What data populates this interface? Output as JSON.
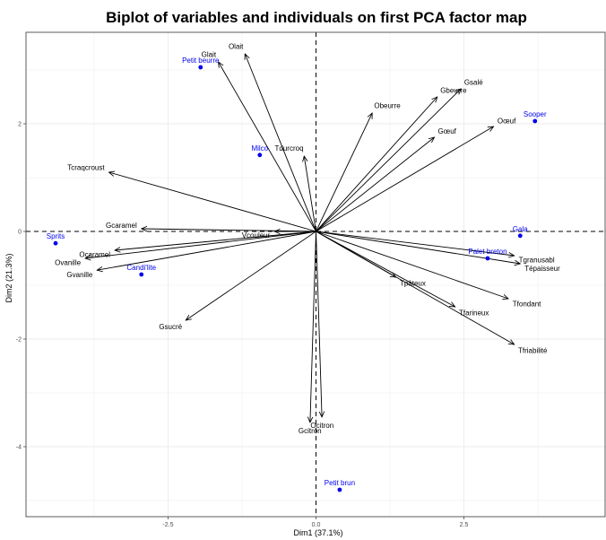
{
  "chart_data": {
    "type": "scatter",
    "title": "Biplot of variables and individuals on first PCA factor map",
    "xlabel": "Dim1 (37.1%)",
    "ylabel": "Dim2 (21.3%)",
    "xlim": [
      -4.9,
      4.9
    ],
    "ylim": [
      -5.3,
      3.7
    ],
    "x_ticks": [
      -2.5,
      0.0,
      2.5
    ],
    "x_tick_labels": [
      "-2.5",
      "0.0",
      "2.5"
    ],
    "y_ticks": [
      -4,
      -2,
      0,
      2
    ],
    "y_tick_labels": [
      "-4",
      "-2",
      "0",
      "2"
    ],
    "grid": true,
    "colors": {
      "individuals": "#0000ee",
      "variables": "#000000",
      "grid": "#ebebeb",
      "frame": "#333333"
    },
    "variables": [
      {
        "name": "Glait",
        "x": -1.65,
        "y": 3.15
      },
      {
        "name": "Olait",
        "x": -1.2,
        "y": 3.3
      },
      {
        "name": "Gbeurre",
        "x": 2.05,
        "y": 2.5
      },
      {
        "name": "Gsalé",
        "x": 2.45,
        "y": 2.65
      },
      {
        "name": "Obeurre",
        "x": 0.95,
        "y": 2.2
      },
      {
        "name": "Gœuf",
        "x": 2.0,
        "y": 1.75
      },
      {
        "name": "Oœuf",
        "x": 3.0,
        "y": 1.95
      },
      {
        "name": "Tdurcroq",
        "x": -0.2,
        "y": 1.4
      },
      {
        "name": "Tcraqcroust",
        "x": -3.5,
        "y": 1.1
      },
      {
        "name": "Gcaramel",
        "x": -2.95,
        "y": 0.05
      },
      {
        "name": "Vcouleur",
        "x": -0.7,
        "y": 0.0
      },
      {
        "name": "Ocaramel",
        "x": -3.4,
        "y": -0.35
      },
      {
        "name": "Ovanille",
        "x": -3.9,
        "y": -0.5
      },
      {
        "name": "Gvanille",
        "x": -3.7,
        "y": -0.72
      },
      {
        "name": "Gsucré",
        "x": -2.2,
        "y": -1.65
      },
      {
        "name": "Tgranusabl",
        "x": 3.35,
        "y": -0.45
      },
      {
        "name": "Tépaisseur",
        "x": 3.45,
        "y": -0.6
      },
      {
        "name": "Tpâteux",
        "x": 1.35,
        "y": -0.85
      },
      {
        "name": "Tfarineux",
        "x": 2.35,
        "y": -1.4
      },
      {
        "name": "Tfondant",
        "x": 3.25,
        "y": -1.25
      },
      {
        "name": "Tfriabilité",
        "x": 3.35,
        "y": -2.1
      },
      {
        "name": "Gcitron",
        "x": -0.1,
        "y": -3.55
      },
      {
        "name": "Ocitron",
        "x": 0.1,
        "y": -3.45
      }
    ],
    "individuals": [
      {
        "name": "Petit beurre",
        "x": -1.95,
        "y": 3.05
      },
      {
        "name": "Milco",
        "x": -0.95,
        "y": 1.42
      },
      {
        "name": "Sooper",
        "x": 3.7,
        "y": 2.05
      },
      {
        "name": "Gala",
        "x": 3.45,
        "y": -0.08
      },
      {
        "name": "Palet breton",
        "x": 2.9,
        "y": -0.5
      },
      {
        "name": "Sprits",
        "x": -4.4,
        "y": -0.22
      },
      {
        "name": "Candi'lite",
        "x": -2.95,
        "y": -0.8
      },
      {
        "name": "Petit brun",
        "x": 0.4,
        "y": -4.8
      }
    ]
  }
}
